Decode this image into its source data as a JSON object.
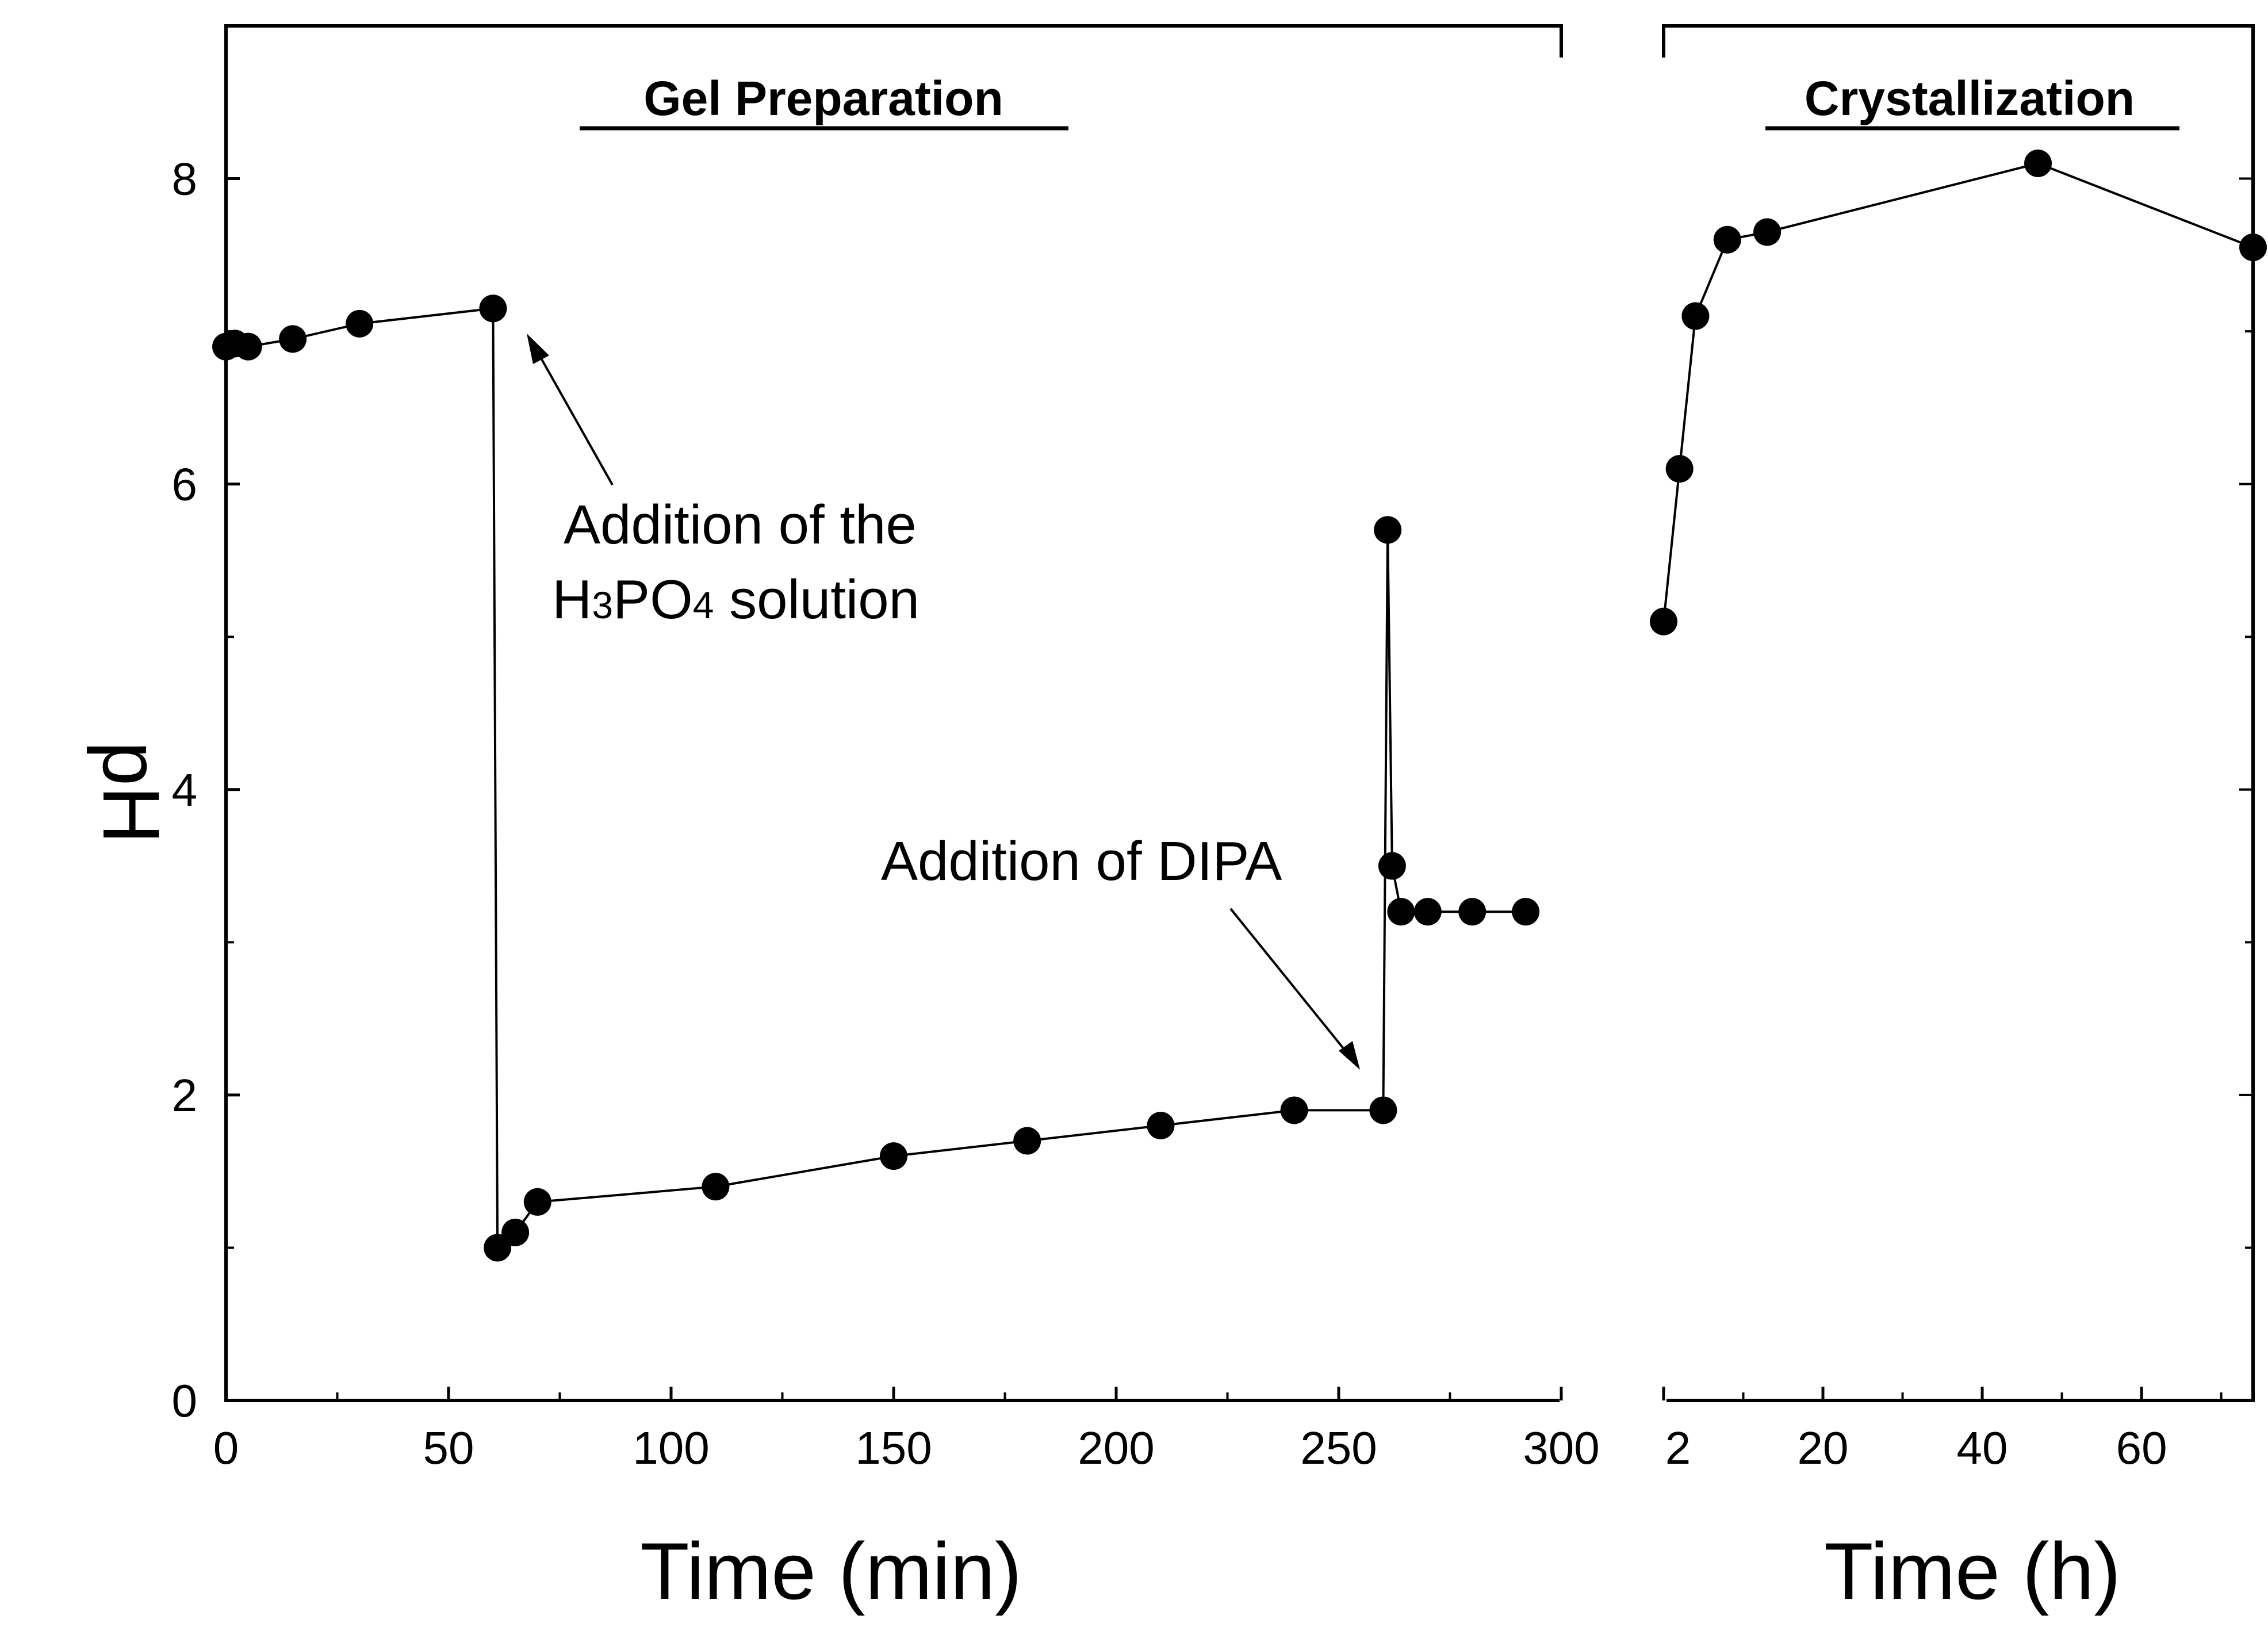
{
  "chart_data": [
    {
      "type": "line",
      "title": "Gel Preparation",
      "xlabel": "Time (min)",
      "ylabel": "pH",
      "xlim": [
        0,
        300
      ],
      "ylim": [
        0,
        9
      ],
      "xticks": [
        "0",
        "50",
        "100",
        "150",
        "200",
        "250",
        "300"
      ],
      "yticks": [
        "0",
        "2",
        "4",
        "6",
        "8"
      ],
      "grid": false,
      "legend": "none",
      "series": [
        {
          "marker": "filled-circle",
          "color": "#000000",
          "x": [
            0,
            2,
            5,
            15,
            30,
            60,
            61,
            65,
            70,
            110,
            150,
            180,
            210,
            240,
            260,
            261,
            262,
            264,
            270,
            280,
            292
          ],
          "y": [
            6.9,
            6.92,
            6.9,
            6.95,
            7.05,
            7.15,
            1.0,
            1.1,
            1.3,
            1.4,
            1.6,
            1.7,
            1.8,
            1.9,
            1.9,
            5.7,
            3.5,
            3.2,
            3.2,
            3.2,
            3.2
          ]
        }
      ],
      "annotations": [
        {
          "line1": "Addition of the",
          "line2_main_a": "H",
          "line2_sub_a": "3",
          "line2_main_b": "PO",
          "line2_sub_b": "4",
          "line2_rest": " solution"
        },
        {
          "text": "Addition of DIPA"
        }
      ]
    },
    {
      "type": "line",
      "title": "Crystallization",
      "xlabel": "Time (h)",
      "xlim": [
        0,
        74
      ],
      "ylim": [
        0,
        9
      ],
      "xticks": [
        "2",
        "20",
        "40",
        "60"
      ],
      "grid": false,
      "legend": "none",
      "series": [
        {
          "marker": "filled-circle",
          "color": "#000000",
          "x": [
            0,
            2,
            4,
            8,
            13,
            47,
            74
          ],
          "y": [
            5.1,
            6.1,
            7.1,
            7.6,
            7.65,
            8.1,
            7.55
          ]
        }
      ]
    }
  ]
}
